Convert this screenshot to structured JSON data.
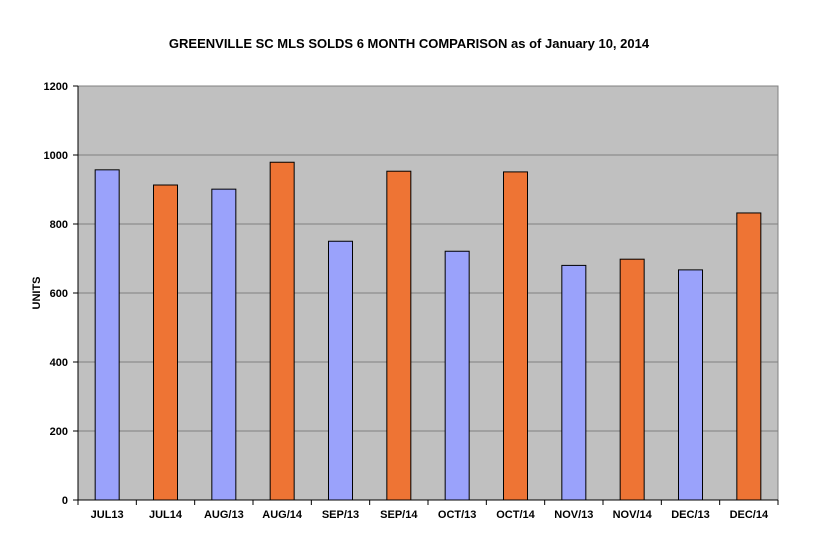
{
  "chart_data": {
    "type": "bar",
    "title": "GREENVILLE SC MLS SOLDS 6 MONTH COMPARISON as of January 10, 2014",
    "xlabel": "",
    "ylabel": "UNITS",
    "ylim": [
      0,
      1200
    ],
    "yticks": [
      0,
      200,
      400,
      600,
      800,
      1000,
      1200
    ],
    "grid": true,
    "legend": "none",
    "categories": [
      "JUL13",
      "JUL14",
      "AUG/13",
      "AUG/14",
      "SEP/13",
      "SEP/14",
      "OCT/13",
      "OCT/14",
      "NOV/13",
      "NOV/14",
      "DEC/13",
      "DEC/14"
    ],
    "values": [
      957,
      913,
      901,
      979,
      750,
      953,
      721,
      951,
      680,
      698,
      667,
      832
    ],
    "bar_colors": [
      "#9aa2fb",
      "#ee7434",
      "#9aa2fb",
      "#ee7434",
      "#9aa2fb",
      "#ee7434",
      "#9aa2fb",
      "#ee7434",
      "#9aa2fb",
      "#ee7434",
      "#9aa2fb",
      "#ee7434"
    ],
    "plot_background": "#c0c0c0"
  }
}
